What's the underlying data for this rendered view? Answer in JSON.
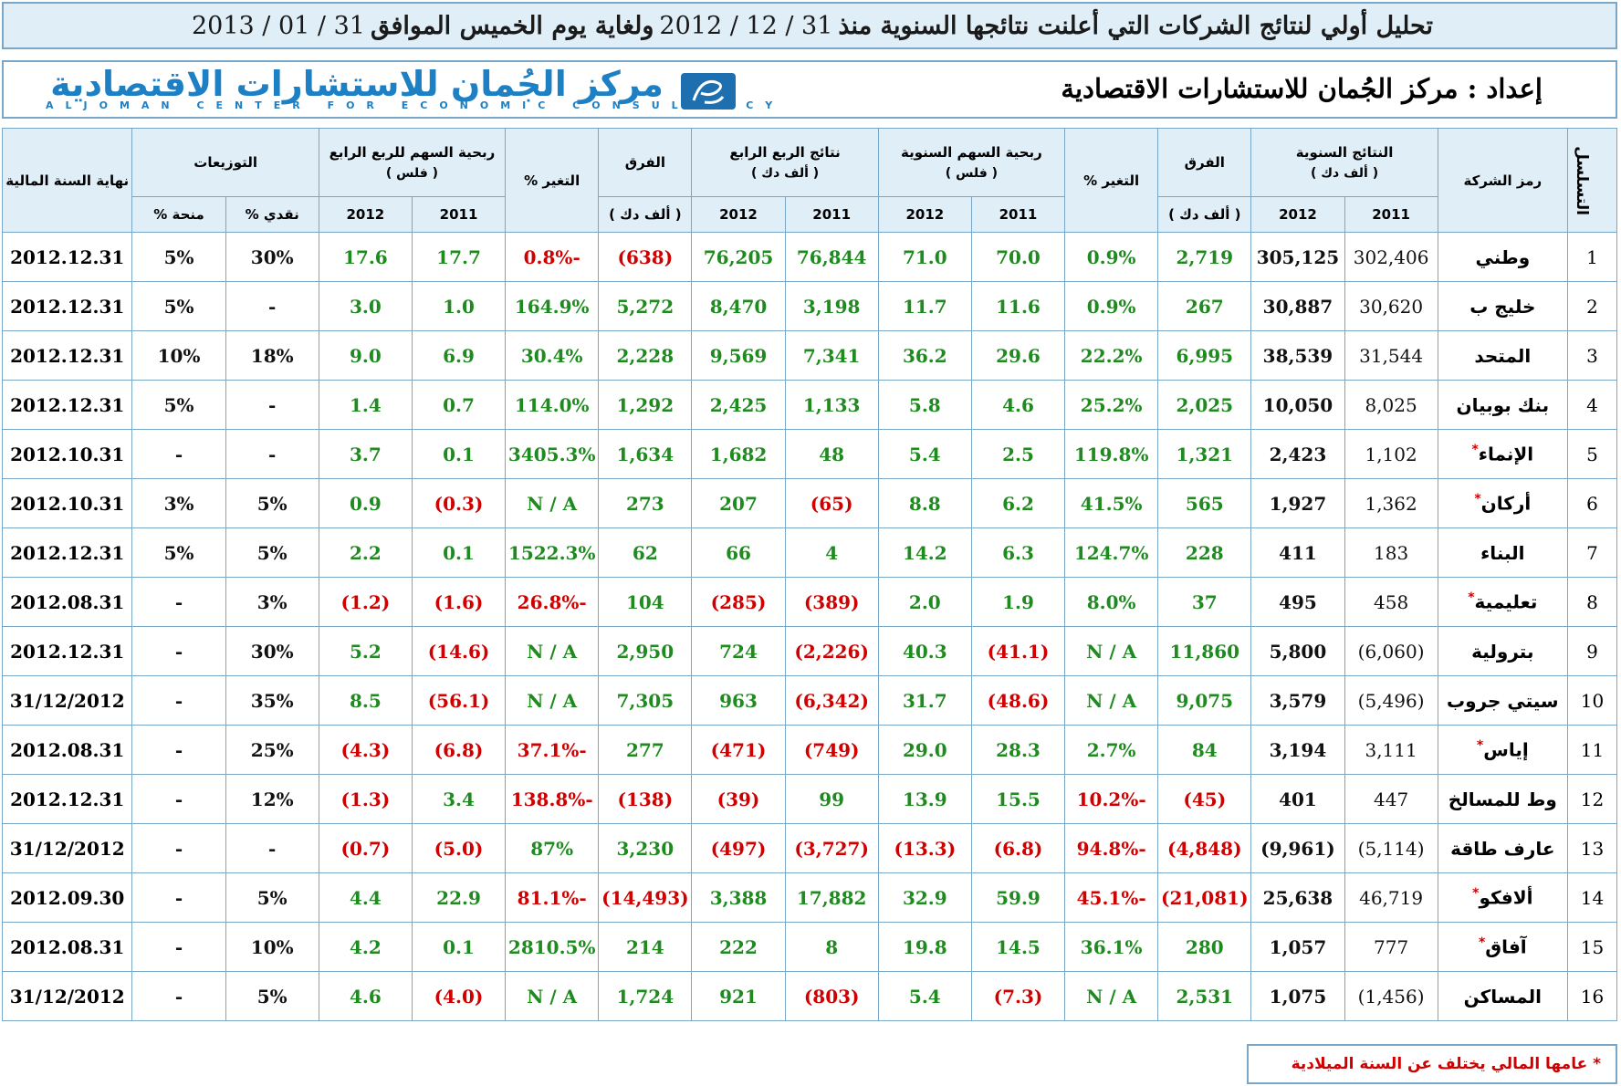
{
  "title": {
    "part1": "تحليل أولي لنتائج الشركات التي أعلنت نتائجها السنوية منذ",
    "date1": "31 / 12 / 2012",
    "part2": "ولغاية يوم الخميس الموافق",
    "date2": "31 / 01 / 2013"
  },
  "header": {
    "prepared_by": "إعداد : مركز الجُمان للاستشارات الاقتصادية",
    "logo_ar": "مركز الجُمان للاستشارات الاقتصادية",
    "logo_en": "ALJOMAN CENTER FOR ECONOMIC CONSULTANCY"
  },
  "columns": {
    "seq": "التسلسل",
    "company": "رمز الشركة",
    "annual_results": "النتائج السنوية",
    "annual_results_unit": "( ألف دك )",
    "diff": "الفرق",
    "diff_unit": "( ألف دك )",
    "change": "التغير %",
    "annual_eps": "ربحية السهم السنوية",
    "annual_eps_unit": "( فلس )",
    "q4_results": "نتائج الربع الرابع",
    "q4_results_unit": "( ألف دك )",
    "q4_diff": "الفرق",
    "q4_diff_unit": "( ألف دك )",
    "q4_change": "التغير %",
    "q4_eps": "ربحية السهم للربع الرابع",
    "q4_eps_unit": "( فلس )",
    "distributions": "التوزيعات",
    "cash": "نقدي %",
    "bonus": "منحة %",
    "fy_end": "نهاية السنة المالية",
    "y2011": "2011",
    "y2012": "2012"
  },
  "rows": [
    {
      "seq": "1",
      "company": "وطني",
      "star": false,
      "a11": "302,406",
      "a12": "305,125",
      "diff": "2,719",
      "chg": "0.9%",
      "eps11": "70.0",
      "eps12": "71.0",
      "q11": "76,844",
      "q12": "76,205",
      "qdiff": "(638)",
      "qchg": "-0.8%",
      "qeps11": "17.7",
      "qeps12": "17.6",
      "cash": "30%",
      "bonus": "5%",
      "fy": "2012.12.31"
    },
    {
      "seq": "2",
      "company": "خليج ب",
      "star": false,
      "a11": "30,620",
      "a12": "30,887",
      "diff": "267",
      "chg": "0.9%",
      "eps11": "11.6",
      "eps12": "11.7",
      "q11": "3,198",
      "q12": "8,470",
      "qdiff": "5,272",
      "qchg": "164.9%",
      "qeps11": "1.0",
      "qeps12": "3.0",
      "cash": "-",
      "bonus": "5%",
      "fy": "2012.12.31"
    },
    {
      "seq": "3",
      "company": "المتحد",
      "star": false,
      "a11": "31,544",
      "a12": "38,539",
      "diff": "6,995",
      "chg": "22.2%",
      "eps11": "29.6",
      "eps12": "36.2",
      "q11": "7,341",
      "q12": "9,569",
      "qdiff": "2,228",
      "qchg": "30.4%",
      "qeps11": "6.9",
      "qeps12": "9.0",
      "cash": "18%",
      "bonus": "10%",
      "fy": "2012.12.31"
    },
    {
      "seq": "4",
      "company": "بنك بوبيان",
      "star": false,
      "a11": "8,025",
      "a12": "10,050",
      "diff": "2,025",
      "chg": "25.2%",
      "eps11": "4.6",
      "eps12": "5.8",
      "q11": "1,133",
      "q12": "2,425",
      "qdiff": "1,292",
      "qchg": "114.0%",
      "qeps11": "0.7",
      "qeps12": "1.4",
      "cash": "-",
      "bonus": "5%",
      "fy": "2012.12.31"
    },
    {
      "seq": "5",
      "company": "الإنماء",
      "star": true,
      "a11": "1,102",
      "a12": "2,423",
      "diff": "1,321",
      "chg": "119.8%",
      "eps11": "2.5",
      "eps12": "5.4",
      "q11": "48",
      "q12": "1,682",
      "qdiff": "1,634",
      "qchg": "3405.3%",
      "qeps11": "0.1",
      "qeps12": "3.7",
      "cash": "-",
      "bonus": "-",
      "fy": "2012.10.31"
    },
    {
      "seq": "6",
      "company": "أركان",
      "star": true,
      "a11": "1,362",
      "a12": "1,927",
      "diff": "565",
      "chg": "41.5%",
      "eps11": "6.2",
      "eps12": "8.8",
      "q11": "(65)",
      "q12": "207",
      "qdiff": "273",
      "qchg": "N / A",
      "qeps11": "(0.3)",
      "qeps12": "0.9",
      "cash": "5%",
      "bonus": "3%",
      "fy": "2012.10.31"
    },
    {
      "seq": "7",
      "company": "البناء",
      "star": false,
      "a11": "183",
      "a12": "411",
      "diff": "228",
      "chg": "124.7%",
      "eps11": "6.3",
      "eps12": "14.2",
      "q11": "4",
      "q12": "66",
      "qdiff": "62",
      "qchg": "1522.3%",
      "qeps11": "0.1",
      "qeps12": "2.2",
      "cash": "5%",
      "bonus": "5%",
      "fy": "2012.12.31"
    },
    {
      "seq": "8",
      "company": "تعليمية",
      "star": true,
      "a11": "458",
      "a12": "495",
      "diff": "37",
      "chg": "8.0%",
      "eps11": "1.9",
      "eps12": "2.0",
      "q11": "(389)",
      "q12": "(285)",
      "qdiff": "104",
      "qchg": "-26.8%",
      "qeps11": "(1.6)",
      "qeps12": "(1.2)",
      "cash": "3%",
      "bonus": "-",
      "fy": "2012.08.31"
    },
    {
      "seq": "9",
      "company": "بترولية",
      "star": false,
      "a11": "(6,060)",
      "a12": "5,800",
      "diff": "11,860",
      "chg": "N / A",
      "eps11": "(41.1)",
      "eps12": "40.3",
      "q11": "(2,226)",
      "q12": "724",
      "qdiff": "2,950",
      "qchg": "N / A",
      "qeps11": "(14.6)",
      "qeps12": "5.2",
      "cash": "30%",
      "bonus": "-",
      "fy": "2012.12.31"
    },
    {
      "seq": "10",
      "company": "سيتي جروب",
      "star": false,
      "a11": "(5,496)",
      "a12": "3,579",
      "diff": "9,075",
      "chg": "N / A",
      "eps11": "(48.6)",
      "eps12": "31.7",
      "q11": "(6,342)",
      "q12": "963",
      "qdiff": "7,305",
      "qchg": "N / A",
      "qeps11": "(56.1)",
      "qeps12": "8.5",
      "cash": "35%",
      "bonus": "-",
      "fy": "31/12/2012"
    },
    {
      "seq": "11",
      "company": "إياس",
      "star": true,
      "a11": "3,111",
      "a12": "3,194",
      "diff": "84",
      "chg": "2.7%",
      "eps11": "28.3",
      "eps12": "29.0",
      "q11": "(749)",
      "q12": "(471)",
      "qdiff": "277",
      "qchg": "-37.1%",
      "qeps11": "(6.8)",
      "qeps12": "(4.3)",
      "cash": "25%",
      "bonus": "-",
      "fy": "2012.08.31"
    },
    {
      "seq": "12",
      "company": "وط للمسالخ",
      "star": false,
      "a11": "447",
      "a12": "401",
      "diff": "(45)",
      "chg": "-10.2%",
      "eps11": "15.5",
      "eps12": "13.9",
      "q11": "99",
      "q12": "(39)",
      "qdiff": "(138)",
      "qchg": "-138.8%",
      "qeps11": "3.4",
      "qeps12": "(1.3)",
      "cash": "12%",
      "bonus": "-",
      "fy": "2012.12.31"
    },
    {
      "seq": "13",
      "company": "عارف طاقة",
      "star": false,
      "a11": "(5,114)",
      "a12": "(9,961)",
      "diff": "(4,848)",
      "chg": "-94.8%",
      "eps11": "(6.8)",
      "eps12": "(13.3)",
      "q11": "(3,727)",
      "q12": "(497)",
      "qdiff": "3,230",
      "qchg": "87%",
      "qeps11": "(5.0)",
      "qeps12": "(0.7)",
      "cash": "-",
      "bonus": "-",
      "fy": "31/12/2012"
    },
    {
      "seq": "14",
      "company": "ألافكو",
      "star": true,
      "a11": "46,719",
      "a12": "25,638",
      "diff": "(21,081)",
      "chg": "-45.1%",
      "eps11": "59.9",
      "eps12": "32.9",
      "q11": "17,882",
      "q12": "3,388",
      "qdiff": "(14,493)",
      "qchg": "-81.1%",
      "qeps11": "22.9",
      "qeps12": "4.4",
      "cash": "5%",
      "bonus": "-",
      "fy": "2012.09.30"
    },
    {
      "seq": "15",
      "company": "آفاق",
      "star": true,
      "a11": "777",
      "a12": "1,057",
      "diff": "280",
      "chg": "36.1%",
      "eps11": "14.5",
      "eps12": "19.8",
      "q11": "8",
      "q12": "222",
      "qdiff": "214",
      "qchg": "2810.5%",
      "qeps11": "0.1",
      "qeps12": "4.2",
      "cash": "10%",
      "bonus": "-",
      "fy": "2012.08.31"
    },
    {
      "seq": "16",
      "company": "المساكن",
      "star": false,
      "a11": "(1,456)",
      "a12": "1,075",
      "diff": "2,531",
      "chg": "N / A",
      "eps11": "(7.3)",
      "eps12": "5.4",
      "q11": "(803)",
      "q12": "921",
      "qdiff": "1,724",
      "qchg": "N / A",
      "qeps11": "(4.0)",
      "qeps12": "4.6",
      "cash": "5%",
      "bonus": "-",
      "fy": "31/12/2012"
    }
  ],
  "footnote": "* عامها المالي يختلف عن السنة الميلادية",
  "colors": {
    "positive": "#1f8a1f",
    "negative": "#d00000",
    "header_bg": "#dfeef7",
    "border": "#7aa7c7",
    "logo": "#1d7fc4"
  }
}
